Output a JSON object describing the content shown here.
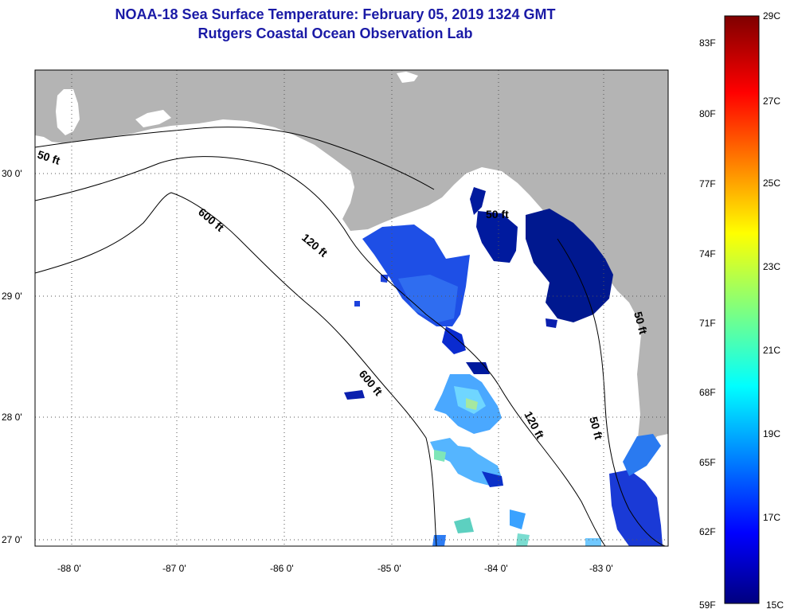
{
  "title": {
    "line1": "NOAA-18 Sea Surface Temperature:  February 05, 2019 1324 GMT",
    "line2": "Rutgers Coastal Ocean Observation Lab"
  },
  "map": {
    "lon_labels": [
      "-88 0'",
      "-87 0'",
      "-86 0'",
      "-85 0'",
      "-84 0'",
      "-83 0'"
    ],
    "lat_labels": [
      "30 0'",
      "29 0'",
      "28 0'",
      "27 0'"
    ],
    "contour_labels": [
      "50 ft",
      "600 ft",
      "120 ft",
      "600 ft",
      "50 ft",
      "120 ft",
      "50 ft",
      "50 ft"
    ],
    "land_color": "#b4b4b4",
    "water_color": "#ffffff"
  },
  "colorbar": {
    "fahrenheit": [
      "83F",
      "80F",
      "77F",
      "74F",
      "71F",
      "68F",
      "65F",
      "62F",
      "59F"
    ],
    "celsius": [
      "29C",
      "27C",
      "25C",
      "23C",
      "21C",
      "19C",
      "17C",
      "15C"
    ],
    "range_c": [
      15,
      29
    ],
    "range_f": [
      59,
      84
    ]
  }
}
